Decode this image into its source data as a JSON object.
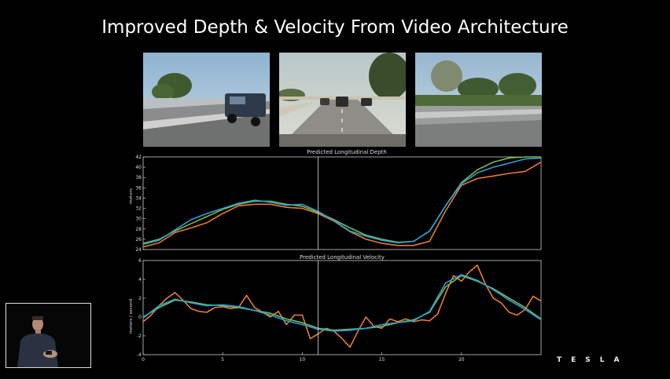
{
  "slide": {
    "title": "Improved Depth & Velocity From Video Architecture",
    "logo": "TESLA"
  },
  "camera_views": [
    {
      "name": "left-camera-view"
    },
    {
      "name": "front-camera-view"
    },
    {
      "name": "right-camera-view"
    }
  ],
  "chart_data": [
    {
      "type": "line",
      "title": "Predicted Longitudinal Depth",
      "xlabel": "",
      "ylabel": "meters",
      "xlim": [
        0,
        25
      ],
      "ylim": [
        24,
        42
      ],
      "yticks": [
        24,
        26,
        28,
        30,
        32,
        34,
        36,
        38,
        40,
        42
      ],
      "xticks": [],
      "marker_x": 11,
      "grid": false,
      "series": [
        {
          "color": "#e87b2e",
          "x": [
            0,
            1,
            2,
            3,
            4,
            5,
            6,
            7,
            8,
            9,
            10,
            11,
            12,
            13,
            14,
            15,
            16,
            17,
            18,
            19,
            20,
            21,
            22,
            23,
            24,
            25
          ],
          "y": [
            24.5,
            25.3,
            27.3,
            28.2,
            29.2,
            31.0,
            32.5,
            32.8,
            32.8,
            32.2,
            32.0,
            31.0,
            29.5,
            27.5,
            26.0,
            25.2,
            24.8,
            24.8,
            25.6,
            31.5,
            36.5,
            37.8,
            38.3,
            38.8,
            39.2,
            41.0
          ]
        },
        {
          "color": "#7ab648",
          "x": [
            0,
            1,
            2,
            3,
            4,
            5,
            6,
            7,
            8,
            9,
            10,
            11,
            12,
            13,
            14,
            15,
            16,
            17,
            18,
            19,
            20,
            21,
            22,
            23,
            24,
            25
          ],
          "y": [
            25.2,
            26.0,
            27.6,
            29.0,
            30.4,
            31.8,
            32.8,
            33.4,
            33.4,
            32.8,
            32.4,
            31.2,
            29.8,
            28.2,
            26.8,
            26.0,
            25.4,
            25.6,
            27.6,
            32.5,
            37.0,
            39.5,
            41.0,
            41.8,
            42.0,
            42.0
          ]
        },
        {
          "color": "#2a9fd8",
          "x": [
            0,
            1,
            2,
            3,
            4,
            5,
            6,
            7,
            8,
            9,
            10,
            11,
            12,
            13,
            14,
            15,
            16,
            17,
            18,
            19,
            20,
            21,
            22,
            23,
            24,
            25
          ],
          "y": [
            25.0,
            25.8,
            27.8,
            29.8,
            31.0,
            32.0,
            33.0,
            33.6,
            33.2,
            32.6,
            32.8,
            31.4,
            29.6,
            27.6,
            26.6,
            25.8,
            25.3,
            25.6,
            27.6,
            32.5,
            36.8,
            38.9,
            40.0,
            40.8,
            41.6,
            41.8
          ]
        }
      ]
    },
    {
      "type": "line",
      "title": "Predicted Longitudinal Velocity",
      "xlabel": "",
      "ylabel": "meters / second",
      "xlim": [
        0,
        25
      ],
      "ylim": [
        -4,
        6
      ],
      "yticks": [
        -4,
        -2,
        0,
        2,
        4,
        6
      ],
      "xticks": [
        0,
        5,
        10,
        15,
        20
      ],
      "marker_x": 11,
      "grid": false,
      "series": [
        {
          "color": "#e87b2e",
          "x": [
            0,
            0.5,
            1,
            1.5,
            2,
            2.5,
            3,
            3.5,
            4,
            4.5,
            5,
            5.5,
            6,
            6.5,
            7,
            7.5,
            8,
            8.5,
            9,
            9.5,
            10,
            10.5,
            11,
            11.5,
            12,
            12.5,
            13,
            13.5,
            14,
            14.5,
            15,
            15.5,
            16,
            16.5,
            17,
            17.5,
            18,
            18.5,
            19,
            19.5,
            20,
            20.5,
            21,
            21.5,
            22,
            22.5,
            23,
            23.5,
            24,
            24.5,
            25
          ],
          "y": [
            -0.5,
            0.2,
            1.2,
            2.0,
            2.6,
            1.8,
            0.9,
            0.6,
            0.5,
            1.0,
            1.1,
            0.9,
            1.0,
            2.3,
            1.0,
            0.5,
            0.0,
            0.6,
            -0.8,
            0.2,
            0.2,
            -2.3,
            -1.8,
            -1.2,
            -1.5,
            -2.3,
            -3.2,
            -1.5,
            0.0,
            -1.0,
            -1.2,
            -0.2,
            -0.5,
            -0.2,
            -0.5,
            -0.3,
            -0.4,
            0.3,
            2.5,
            4.4,
            3.8,
            4.8,
            5.5,
            3.5,
            2.0,
            1.5,
            0.5,
            0.2,
            0.8,
            2.2,
            1.7
          ]
        },
        {
          "color": "#7ab648",
          "x": [
            0,
            1,
            2,
            3,
            4,
            5,
            6,
            7,
            8,
            9,
            10,
            11,
            12,
            13,
            14,
            15,
            16,
            17,
            18,
            19,
            20,
            21,
            22,
            23,
            24,
            25
          ],
          "y": [
            0.0,
            1.0,
            1.8,
            1.6,
            1.3,
            1.2,
            1.0,
            0.7,
            0.4,
            -0.2,
            -0.6,
            -1.2,
            -1.4,
            -1.3,
            -1.2,
            -1.0,
            -0.6,
            -0.3,
            0.5,
            3.2,
            4.4,
            3.8,
            3.0,
            2.0,
            1.0,
            -0.2
          ]
        },
        {
          "color": "#2a9fd8",
          "x": [
            0,
            1,
            2,
            3,
            4,
            5,
            6,
            7,
            8,
            9,
            10,
            11,
            12,
            13,
            14,
            15,
            16,
            17,
            18,
            19,
            20,
            21,
            22,
            23,
            24,
            25
          ],
          "y": [
            -0.1,
            1.2,
            1.9,
            1.5,
            1.2,
            1.3,
            1.1,
            0.7,
            0.2,
            -0.4,
            -0.8,
            -1.3,
            -1.5,
            -1.4,
            -1.2,
            -0.8,
            -0.6,
            -0.4,
            0.6,
            3.6,
            4.5,
            3.9,
            2.9,
            1.8,
            0.8,
            -0.3
          ]
        }
      ]
    }
  ]
}
